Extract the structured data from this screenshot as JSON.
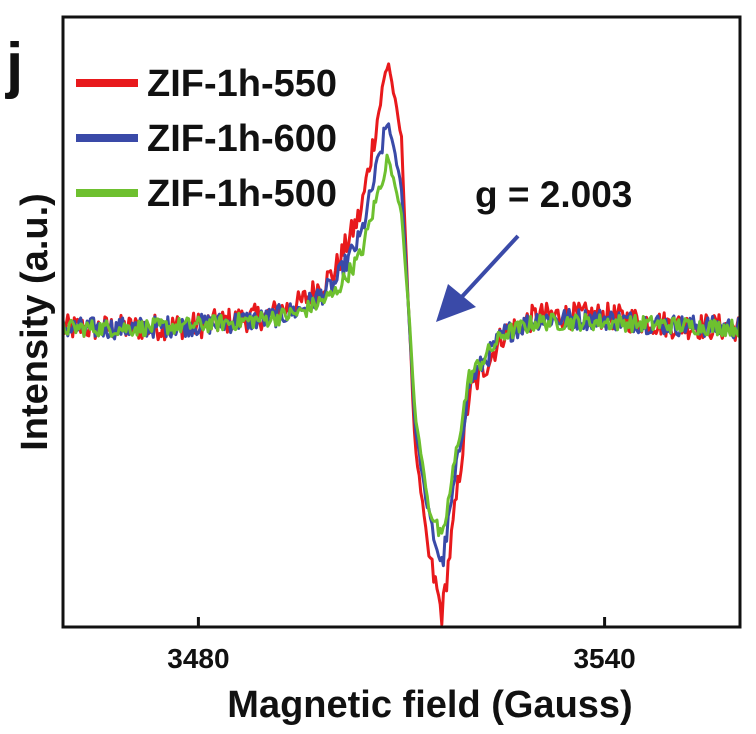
{
  "panel_label": "j",
  "chart_data": {
    "type": "line",
    "title": "",
    "xlabel": "Magnetic field (Gauss)",
    "ylabel": "Intensity (a.u.)",
    "xlim": [
      3460,
      3560
    ],
    "ylim": [
      0,
      1
    ],
    "x_ticks": [
      3480,
      3540
    ],
    "y_ticks": [],
    "grid": false,
    "legend_position": "top-left",
    "annotation": {
      "text": "g = 2.003",
      "x": 3511,
      "arrow_points_to": [
        3511,
        0.53
      ]
    },
    "series": [
      {
        "name": "ZIF-1h-550",
        "color": "#e8191c",
        "x": [
          3460,
          3470,
          3480,
          3490,
          3495,
          3500,
          3504,
          3508,
          3510,
          3511,
          3512,
          3514,
          3516,
          3518,
          3520,
          3525,
          3530,
          3540,
          3550,
          3560
        ],
        "y": [
          0.49,
          0.49,
          0.495,
          0.51,
          0.53,
          0.58,
          0.68,
          0.93,
          0.8,
          0.53,
          0.3,
          0.12,
          0.02,
          0.2,
          0.38,
          0.48,
          0.51,
          0.51,
          0.495,
          0.49
        ],
        "noise": 0.022
      },
      {
        "name": "ZIF-1h-600",
        "color": "#3a4aa8",
        "x": [
          3460,
          3470,
          3480,
          3490,
          3495,
          3500,
          3504,
          3508,
          3510,
          3511,
          3512,
          3514,
          3516,
          3518,
          3520,
          3525,
          3530,
          3540,
          3550,
          3560
        ],
        "y": [
          0.49,
          0.49,
          0.495,
          0.505,
          0.52,
          0.56,
          0.64,
          0.83,
          0.72,
          0.53,
          0.33,
          0.18,
          0.1,
          0.25,
          0.4,
          0.48,
          0.505,
          0.505,
          0.495,
          0.49
        ],
        "noise": 0.018
      },
      {
        "name": "ZIF-1h-500",
        "color": "#6ec02f",
        "x": [
          3460,
          3470,
          3480,
          3490,
          3495,
          3500,
          3504,
          3508,
          3510,
          3511,
          3512,
          3514,
          3516,
          3518,
          3520,
          3525,
          3530,
          3540,
          3550,
          3560
        ],
        "y": [
          0.49,
          0.49,
          0.495,
          0.505,
          0.515,
          0.545,
          0.61,
          0.77,
          0.68,
          0.53,
          0.35,
          0.2,
          0.14,
          0.28,
          0.41,
          0.48,
          0.5,
          0.5,
          0.495,
          0.49
        ],
        "noise": 0.014
      }
    ]
  }
}
